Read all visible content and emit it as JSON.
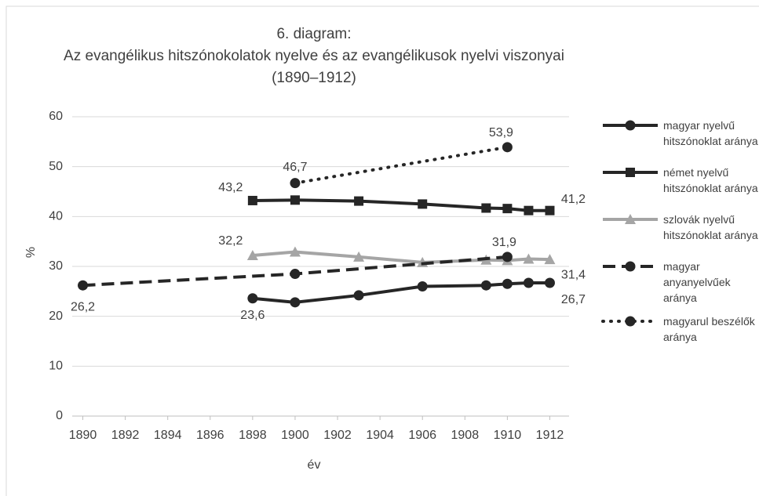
{
  "chart_data": {
    "type": "line",
    "title": [
      "6. diagram:",
      "Az evangélikus hitszónokolatok nyelve és az evangélikusok nyelvi viszonyai",
      "(1890–1912)"
    ],
    "xlabel": "év",
    "ylabel": "%",
    "xlim": [
      1889.5,
      1912.5
    ],
    "xticks": [
      1890,
      1892,
      1894,
      1896,
      1898,
      1900,
      1902,
      1904,
      1906,
      1908,
      1910,
      1912
    ],
    "ylim": [
      0,
      60
    ],
    "yticks": [
      0,
      10,
      20,
      30,
      40,
      50,
      60
    ],
    "grid": true,
    "legend": "right",
    "series": [
      {
        "name": "magyar nyelvű hitszónoklat aránya",
        "color": "#262626",
        "style": "solid",
        "marker": "circle",
        "x": [
          1898,
          1900,
          1903,
          1906,
          1909,
          1910,
          1911,
          1912
        ],
        "values": [
          23.6,
          22.8,
          24.2,
          26.0,
          26.2,
          26.5,
          26.7,
          26.7
        ],
        "value_labels": [
          "23,6",
          null,
          null,
          null,
          null,
          null,
          null,
          "26,7"
        ]
      },
      {
        "name": "német nyelvű hitszónoklat aránya",
        "color": "#262626",
        "style": "solid",
        "marker": "square",
        "x": [
          1898,
          1900,
          1903,
          1906,
          1909,
          1910,
          1911,
          1912
        ],
        "values": [
          43.2,
          43.3,
          43.1,
          42.5,
          41.7,
          41.6,
          41.2,
          41.2
        ],
        "value_labels": [
          "43,2",
          null,
          null,
          null,
          null,
          null,
          null,
          "41,2"
        ]
      },
      {
        "name": "szlovák nyelvű hitszónoklat aránya",
        "color": "#a5a5a5",
        "style": "solid",
        "marker": "triangle",
        "x": [
          1898,
          1900,
          1903,
          1906,
          1909,
          1910,
          1911,
          1912
        ],
        "values": [
          32.2,
          32.9,
          31.9,
          30.8,
          31.3,
          31.2,
          31.5,
          31.4
        ],
        "value_labels": [
          "32,2",
          null,
          null,
          null,
          null,
          null,
          null,
          "31,4"
        ]
      },
      {
        "name": "magyar anyanyelvűek aránya",
        "color": "#262626",
        "style": "dashed",
        "marker": "circle",
        "x": [
          1890,
          1900,
          1910
        ],
        "values": [
          26.2,
          28.5,
          31.9
        ],
        "value_labels": [
          "26,2",
          null,
          "31,9"
        ]
      },
      {
        "name": "magyarul beszélők aránya",
        "color": "#262626",
        "style": "dotted",
        "marker": "circle",
        "x": [
          1900,
          1910
        ],
        "values": [
          46.7,
          53.9
        ],
        "value_labels": [
          "46,7",
          "53,9"
        ]
      }
    ]
  }
}
